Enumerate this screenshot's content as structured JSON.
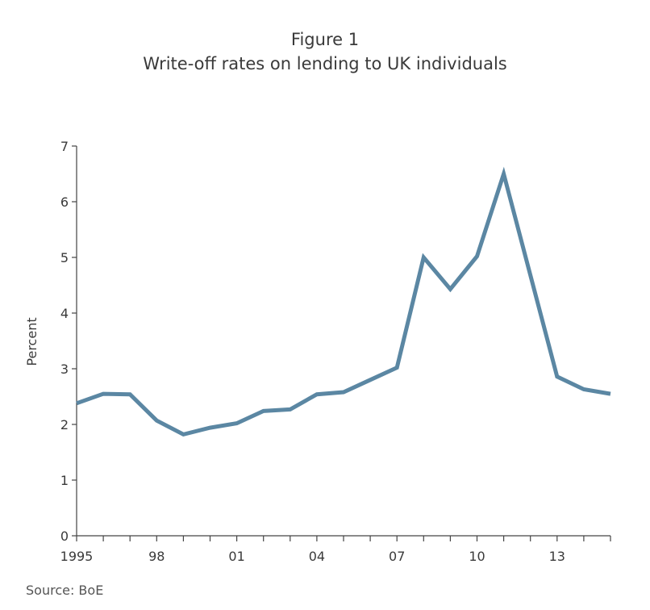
{
  "figure": {
    "label": "Figure 1",
    "title": "Write-off rates on lending to UK individuals",
    "source": "Source: BoE"
  },
  "colors": {
    "line": "#5b87a3",
    "axis": "#444444",
    "text": "#3a3a3a"
  },
  "chart_data": {
    "type": "line",
    "title": "Write-off rates on lending to UK individuals",
    "xlabel": "",
    "ylabel": "Percent",
    "xlim": [
      1995,
      2015
    ],
    "ylim": [
      0,
      7
    ],
    "grid": false,
    "legend": "none",
    "x_ticks": [
      1995,
      1996,
      1997,
      1998,
      1999,
      2000,
      2001,
      2002,
      2003,
      2004,
      2005,
      2006,
      2007,
      2008,
      2009,
      2010,
      2011,
      2012,
      2013,
      2014,
      2015
    ],
    "x_tick_labels": [
      {
        "x": 1995,
        "label": "1995"
      },
      {
        "x": 1998,
        "label": "98"
      },
      {
        "x": 2001,
        "label": "01"
      },
      {
        "x": 2004,
        "label": "04"
      },
      {
        "x": 2007,
        "label": "07"
      },
      {
        "x": 2010,
        "label": "10"
      },
      {
        "x": 2013,
        "label": "13"
      }
    ],
    "y_ticks": [
      0,
      1,
      2,
      3,
      4,
      5,
      6,
      7
    ],
    "series": [
      {
        "x": [
          1995,
          1996,
          1997,
          1998,
          1999,
          2000,
          2001,
          2002,
          2003,
          2004,
          2005,
          2006,
          2007,
          2008,
          2009,
          2010,
          2011,
          2012,
          2013,
          2014,
          2015
        ],
        "values": [
          2.38,
          2.55,
          2.54,
          2.07,
          1.82,
          1.94,
          2.02,
          2.24,
          2.27,
          2.54,
          2.58,
          2.8,
          3.02,
          5.0,
          4.43,
          5.02,
          6.5,
          4.68,
          2.86,
          2.63,
          2.55
        ]
      }
    ]
  }
}
